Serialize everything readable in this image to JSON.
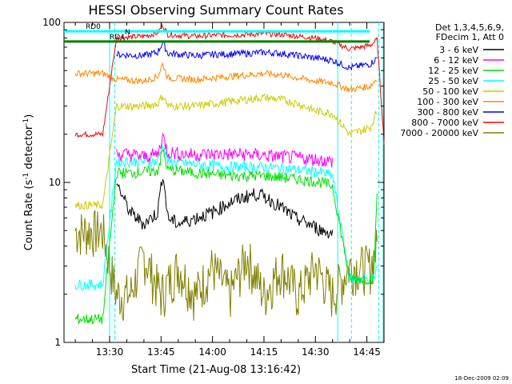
{
  "chart_data": {
    "type": "line",
    "title": "HESSI Observing Summary Count Rates",
    "xlabel": "Start Time (21-Aug-08 13:16:42)",
    "ylabel_prefix": "Count Rate (s",
    "ylabel_sup": "-1",
    "ylabel_suffix": " detector",
    "ylabel_sup2": "-1",
    "ylabel_close": ")",
    "yscale": "log",
    "ylim": [
      1,
      100
    ],
    "xlim": [
      16.7,
      110
    ],
    "x_tick_minutes": [
      30,
      45,
      60,
      75,
      90,
      105
    ],
    "x_tick_labels": [
      "13:30",
      "13:45",
      "14:00",
      "14:15",
      "14:30",
      "14:45"
    ],
    "y_tick_values": [
      1,
      10,
      100
    ],
    "y_tick_labels": [
      "1",
      "10",
      "100"
    ],
    "legend": {
      "header_line1": "Det 1,3,4,5,6,9,",
      "header_line2": "FDecim 1, Att 0",
      "placement": "right, outside plot"
    },
    "series": [
      {
        "name": "3 - 6 keV",
        "color": "#000000",
        "values_at_minutes": [
          [
            32,
            10
          ],
          [
            34,
            8
          ],
          [
            36,
            6.5
          ],
          [
            40,
            5.5
          ],
          [
            44,
            6.5
          ],
          [
            45.5,
            11.5
          ],
          [
            47,
            6
          ],
          [
            50,
            5.5
          ],
          [
            55,
            6
          ],
          [
            60,
            6.5
          ],
          [
            65,
            7.5
          ],
          [
            70,
            8.2
          ],
          [
            73,
            8.5
          ],
          [
            76,
            8
          ],
          [
            80,
            7
          ],
          [
            84,
            6
          ],
          [
            88,
            5.5
          ],
          [
            92,
            5.0
          ],
          [
            95,
            4.8
          ]
        ]
      },
      {
        "name": "6 - 12 keV",
        "color": "#ff00ff",
        "values_at_minutes": [
          [
            32,
            15
          ],
          [
            36,
            15
          ],
          [
            40,
            14.5
          ],
          [
            44,
            15
          ],
          [
            45.5,
            19.5
          ],
          [
            47,
            15.5
          ],
          [
            52,
            15
          ],
          [
            60,
            15
          ],
          [
            70,
            15
          ],
          [
            80,
            14.5
          ],
          [
            90,
            14
          ],
          [
            95,
            13.5
          ]
        ]
      },
      {
        "name": "12 - 25 keV",
        "color": "#00dd00",
        "values_at_minutes": [
          [
            20,
            1.4
          ],
          [
            28,
            1.4
          ],
          [
            32,
            11.5
          ],
          [
            36,
            11.5
          ],
          [
            44,
            11.8
          ],
          [
            45.5,
            16
          ],
          [
            47,
            12
          ],
          [
            55,
            11.5
          ],
          [
            65,
            11
          ],
          [
            75,
            11
          ],
          [
            85,
            10.5
          ],
          [
            92,
            10
          ],
          [
            95,
            9.5
          ],
          [
            100,
            2.5
          ],
          [
            107,
            2.5
          ],
          [
            108,
            9
          ]
        ]
      },
      {
        "name": "25 - 50 keV",
        "color": "#00ffff",
        "values_at_minutes": [
          [
            20,
            2.3
          ],
          [
            28,
            2.3
          ],
          [
            32,
            13.5
          ],
          [
            36,
            13.5
          ],
          [
            44,
            13.5
          ],
          [
            45.5,
            17.5
          ],
          [
            47,
            13.5
          ],
          [
            55,
            13
          ],
          [
            65,
            12.5
          ],
          [
            75,
            12.5
          ],
          [
            85,
            12
          ],
          [
            92,
            11.5
          ],
          [
            95,
            11
          ],
          [
            100,
            2.5
          ],
          [
            107,
            2.5
          ],
          [
            108,
            3
          ]
        ]
      },
      {
        "name": "50 - 100 keV",
        "color": "#cccc00",
        "values_at_minutes": [
          [
            20,
            7.2
          ],
          [
            28,
            7.2
          ],
          [
            32,
            30
          ],
          [
            40,
            30
          ],
          [
            44,
            31
          ],
          [
            45.5,
            35
          ],
          [
            47,
            30
          ],
          [
            55,
            30
          ],
          [
            60,
            31
          ],
          [
            70,
            33
          ],
          [
            75,
            34
          ],
          [
            80,
            33
          ],
          [
            85,
            31
          ],
          [
            90,
            28
          ],
          [
            95,
            27
          ],
          [
            100,
            20
          ],
          [
            106,
            22
          ],
          [
            108,
            28
          ]
        ]
      },
      {
        "name": "100 - 300 keV",
        "color": "#ff8800",
        "values_at_minutes": [
          [
            20,
            48
          ],
          [
            28,
            48
          ],
          [
            32,
            44
          ],
          [
            40,
            43
          ],
          [
            44,
            46
          ],
          [
            45.5,
            55
          ],
          [
            47,
            45
          ],
          [
            55,
            44
          ],
          [
            60,
            45
          ],
          [
            70,
            47
          ],
          [
            75,
            48
          ],
          [
            80,
            47
          ],
          [
            85,
            45
          ],
          [
            90,
            43
          ],
          [
            95,
            42
          ],
          [
            100,
            38
          ],
          [
            106,
            40
          ],
          [
            108,
            45
          ]
        ]
      },
      {
        "name": "300 - 800 keV",
        "color": "#0000ff",
        "values_at_minutes": [
          [
            32,
            63
          ],
          [
            40,
            62
          ],
          [
            44,
            65
          ],
          [
            45.5,
            75
          ],
          [
            47,
            64
          ],
          [
            55,
            62
          ],
          [
            60,
            63
          ],
          [
            70,
            64
          ],
          [
            75,
            65
          ],
          [
            80,
            64
          ],
          [
            85,
            62
          ],
          [
            90,
            60
          ],
          [
            95,
            58
          ],
          [
            100,
            52
          ],
          [
            106,
            55
          ],
          [
            108,
            60
          ]
        ]
      },
      {
        "name": "800 - 7000 keV",
        "color": "#ff0000",
        "values_at_minutes": [
          [
            20,
            20
          ],
          [
            28,
            20
          ],
          [
            32,
            80
          ],
          [
            40,
            82
          ],
          [
            44,
            86
          ],
          [
            45.5,
            96
          ],
          [
            47,
            84
          ],
          [
            55,
            82
          ],
          [
            60,
            83
          ],
          [
            70,
            84
          ],
          [
            75,
            85
          ],
          [
            80,
            84
          ],
          [
            85,
            82
          ],
          [
            90,
            80
          ],
          [
            95,
            76
          ],
          [
            100,
            68
          ],
          [
            106,
            72
          ],
          [
            108,
            78
          ],
          [
            110,
            18
          ]
        ]
      },
      {
        "name": "7000 - 20000 keV",
        "color": "#808000",
        "values_at_minutes": [
          [
            20,
            5
          ],
          [
            28,
            5
          ],
          [
            32,
            2
          ],
          [
            36,
            2
          ],
          [
            40,
            3.5
          ],
          [
            45,
            2
          ],
          [
            50,
            3
          ],
          [
            55,
            2
          ],
          [
            60,
            3
          ],
          [
            65,
            2
          ],
          [
            70,
            3.5
          ],
          [
            75,
            2
          ],
          [
            80,
            3
          ],
          [
            85,
            2
          ],
          [
            90,
            3
          ],
          [
            95,
            2
          ],
          [
            100,
            3
          ],
          [
            106,
            3
          ],
          [
            108,
            4
          ]
        ]
      }
    ],
    "reference_lines": [
      {
        "label": "RD0",
        "color": "#00ffff",
        "value": 88
      },
      {
        "label": "RD4",
        "color": "#008000",
        "value": 76
      }
    ],
    "annotations": {
      "marker_N": "N"
    },
    "vertical_lines_minutes": [
      {
        "x": 30,
        "color": "#00ffff",
        "style": "solid"
      },
      {
        "x": 31.5,
        "color": "#00ffff",
        "style": "dashed"
      },
      {
        "x": 96.5,
        "color": "#00ffff",
        "style": "solid"
      },
      {
        "x": 100.5,
        "color": "#00ffff",
        "style": "dashed"
      },
      {
        "x": 108.5,
        "color": "#00ffff",
        "style": "dashed"
      },
      {
        "x": 110,
        "color": "#00ffff",
        "style": "solid"
      }
    ],
    "grid": false
  },
  "footer": {
    "timestamp": "18-Dec-2009 02:09"
  }
}
